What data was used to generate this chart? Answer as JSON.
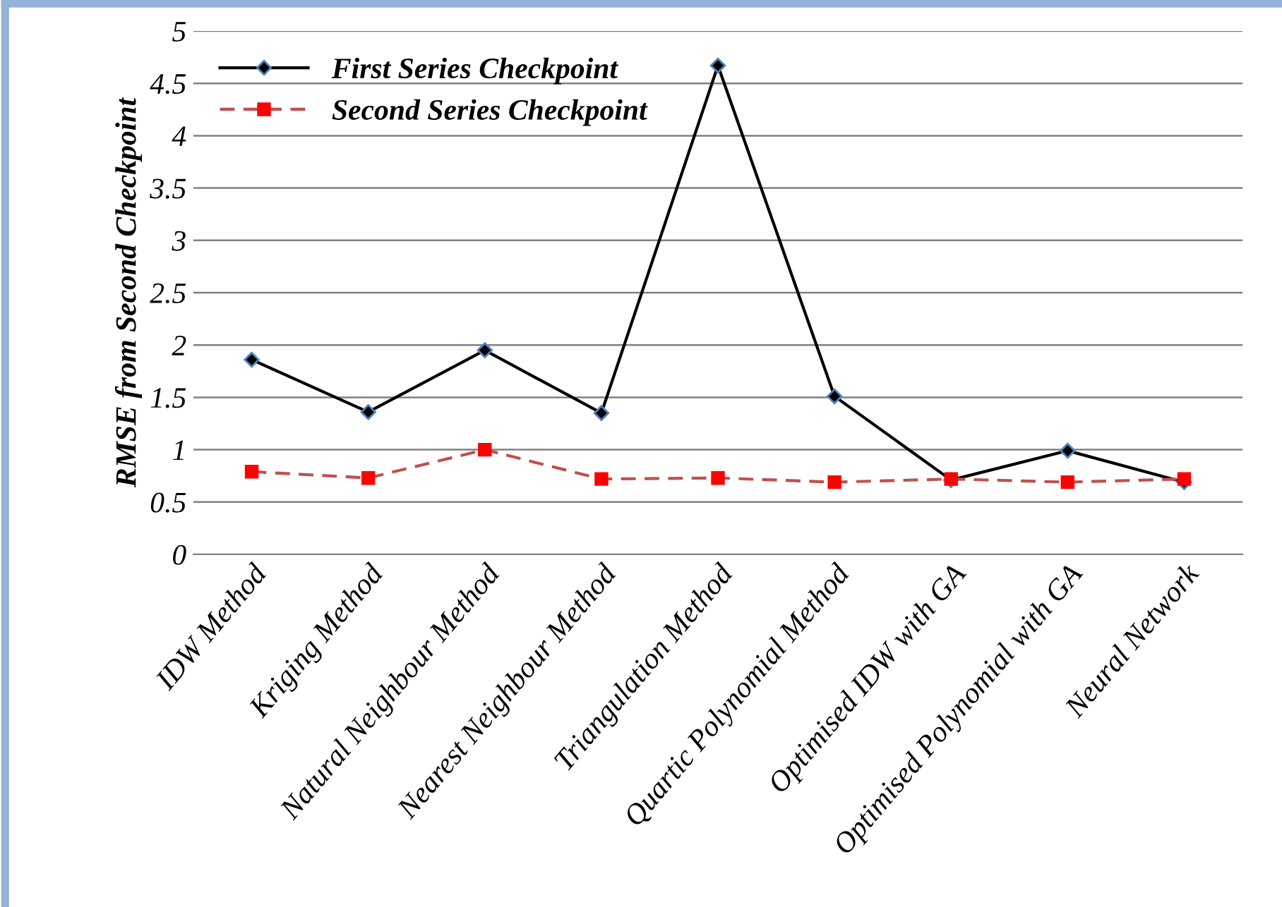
{
  "chart_data": {
    "type": "line",
    "ylabel": "RMSE from Second Checkpoint",
    "categories": [
      "IDW Method",
      "Kriging Method",
      "Natural Neighbour Method",
      "Nearest Neighbour Method",
      "Triangulation Method",
      "Quartic Polynomial Method",
      "Optimised IDW with GA",
      "Optimised Polynomial with GA",
      "Neural Network"
    ],
    "series": [
      {
        "name": "First Series Checkpoint",
        "color": "#000000",
        "marker": "diamond",
        "line_style": "solid",
        "values": [
          1.86,
          1.36,
          1.95,
          1.35,
          4.67,
          1.51,
          0.71,
          0.99,
          0.69
        ]
      },
      {
        "name": "Second Series Checkpoint",
        "color": "#c0504d",
        "marker": "square",
        "line_style": "dashed",
        "values": [
          0.79,
          0.73,
          1.0,
          0.72,
          0.73,
          0.69,
          0.72,
          0.69,
          0.72
        ]
      }
    ],
    "ylim": [
      0,
      5
    ],
    "yticks": [
      0,
      0.5,
      1,
      1.5,
      2,
      2.5,
      3,
      3.5,
      4,
      4.5,
      5
    ],
    "grid": "y",
    "legend": "top left"
  }
}
